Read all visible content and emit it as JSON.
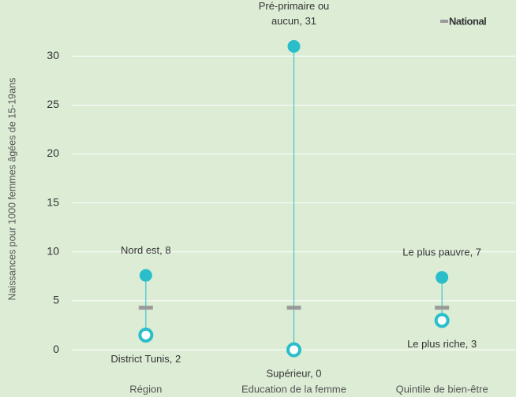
{
  "chart_data": {
    "type": "dot-range",
    "y_axis_label": "Naissances pour 1000 femmes âgées de 15-19ans",
    "categories": [
      "Région",
      "Education de la femme",
      "Quintile de bien-être"
    ],
    "high": {
      "color": "#29bec9",
      "values": [
        7.6,
        31,
        7.4
      ],
      "value_labels": [
        "Nord est, 8",
        "Pré-primaire ou aucun, 31",
        "Le plus pauvre, 7"
      ]
    },
    "low": {
      "color": "#29bec9",
      "values": [
        1.5,
        0,
        3.0
      ],
      "value_labels": [
        "District Tunis, 2",
        "Supérieur, 0",
        "Le plus riche, 3"
      ]
    },
    "series": [
      {
        "name": "National",
        "color": "#9a9a9a",
        "values": [
          4.3,
          4.3,
          4.3
        ]
      }
    ],
    "ylim": [
      -0.8,
      33
    ],
    "yticks": [
      0,
      5,
      10,
      15,
      20,
      25,
      30
    ],
    "grid": true,
    "legend": "top-right"
  }
}
